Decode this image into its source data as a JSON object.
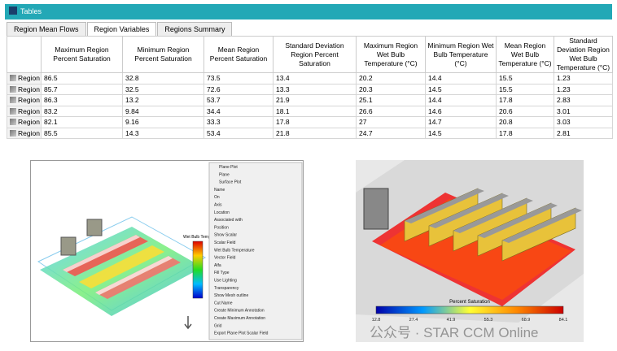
{
  "window": {
    "title": "Tables"
  },
  "tabs": [
    "Region Mean Flows",
    "Region Variables",
    "Regions Summary"
  ],
  "table": {
    "headers": [
      "Maximum Region Percent Saturation",
      "Minimum Region Percent Saturation",
      "Mean Region Percent Saturation",
      "Standard Deviation Region Percent Saturation",
      "Maximum Region Wet Bulb Temperature (°C)",
      "Minimum Region Wet Bulb Temperature (°C)",
      "Mean Region Wet Bulb Temperature (°C)",
      "Standard Deviation Region Wet Bulb Temperature (°C)"
    ],
    "row_label": "Region",
    "rows": [
      [
        "86.5",
        "32.8",
        "73.5",
        "13.4",
        "20.2",
        "14.4",
        "15.5",
        "1.23"
      ],
      [
        "85.7",
        "32.5",
        "72.6",
        "13.3",
        "20.3",
        "14.5",
        "15.5",
        "1.23"
      ],
      [
        "86.3",
        "13.2",
        "53.7",
        "21.9",
        "25.1",
        "14.4",
        "17.8",
        "2.83"
      ],
      [
        "83.2",
        "9.84",
        "34.4",
        "18.1",
        "26.6",
        "14.6",
        "20.6",
        "3.01"
      ],
      [
        "82.1",
        "9.16",
        "33.3",
        "17.8",
        "27",
        "14.7",
        "20.8",
        "3.03"
      ],
      [
        "85.5",
        "14.3",
        "53.4",
        "21.8",
        "24.7",
        "14.5",
        "17.8",
        "2.81"
      ]
    ]
  },
  "left_image": {
    "colorbar_title": "Wet Bulb Temperature (°C)",
    "panel": [
      "Plane Plot",
      "Plane",
      "Surface Plot",
      "Name",
      "On",
      "Axis",
      "Location",
      "Associated with",
      "Position",
      "Show Scalar",
      "Scalar Field",
      "Wet Bulb Temperature",
      "Vector Field",
      "Alfa",
      "Fill Type",
      "Use Lighting",
      "Transparency",
      "Show Mesh outline",
      "Cut Name",
      "Create Minimum Annotation",
      "Create Maximum Annotation",
      "Grid",
      "Export Plane Plot Scalar Field"
    ]
  },
  "right_image": {
    "colorbar_title": "Percent Saturation",
    "colorbar_labels": [
      "12.8",
      "27.4",
      "41.9",
      "55.3",
      "68.9",
      "84.1"
    ]
  },
  "watermark": "公众号 · STAR CCM Online"
}
